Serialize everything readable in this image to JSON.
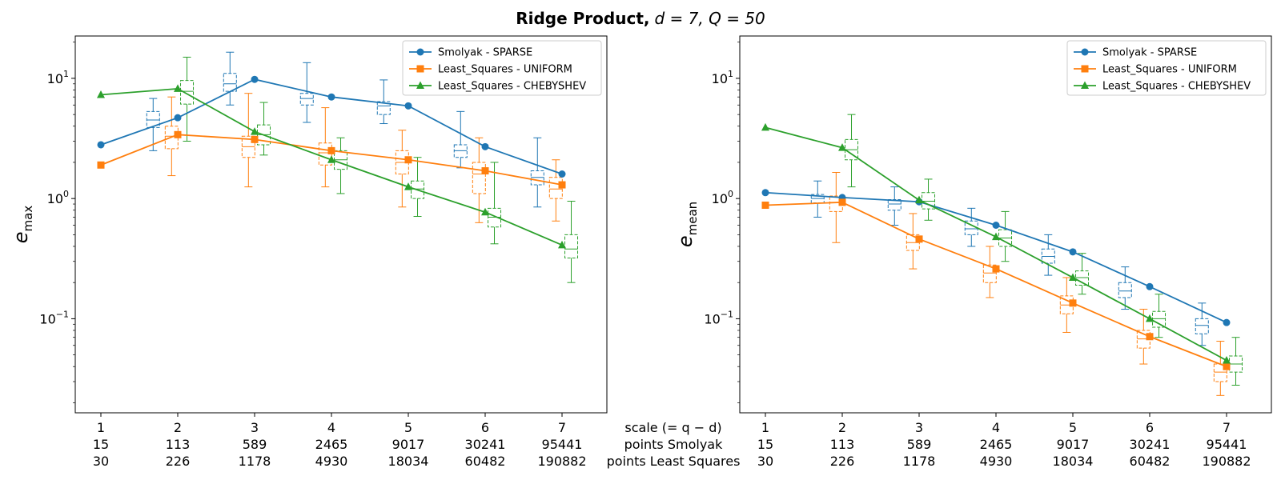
{
  "figure": {
    "title_bold": "Ridge Product,",
    "title_math": "d = 7, Q = 50"
  },
  "table": {
    "header": "scale (= q − d)",
    "row2_label": "points Smolyak",
    "row3_label": "points Least Squares",
    "scales": [
      "1",
      "2",
      "3",
      "4",
      "5",
      "6",
      "7"
    ],
    "points_smolyak": [
      "15",
      "113",
      "589",
      "2465",
      "9017",
      "30241",
      "95441"
    ],
    "points_least_squares": [
      "30",
      "226",
      "1178",
      "4930",
      "18034",
      "60482",
      "190882"
    ]
  },
  "colors": {
    "smolyak": "#1f77b4",
    "uniform": "#ff7f0e",
    "chebyshev": "#2ca02c"
  },
  "chart_data": [
    {
      "type": "line",
      "ylabel": "e_max",
      "yscale": "log",
      "ylim": [
        0.0165,
        22.5
      ],
      "x": [
        1,
        2,
        3,
        4,
        5,
        6,
        7
      ],
      "ytick_labels": [
        "10^-1",
        "10^0",
        "10^1"
      ],
      "legend_position": "top-right",
      "series": [
        {
          "name": "Smolyak - SPARSE",
          "marker": "circle",
          "values": [
            2.8,
            4.7,
            9.8,
            7.0,
            5.9,
            2.7,
            1.6
          ],
          "box": [
            {
              "whisker_low": 2.5,
              "q1": 3.9,
              "median": 4.5,
              "q3": 5.3,
              "whisker_high": 6.8
            },
            {
              "whisker_low": 6.0,
              "q1": 7.8,
              "median": 9.0,
              "q3": 11.0,
              "whisker_high": 16.5
            },
            {
              "whisker_low": 4.3,
              "q1": 6.0,
              "median": 6.8,
              "q3": 7.5,
              "whisker_high": 13.5
            },
            {
              "whisker_low": 4.2,
              "q1": 5.0,
              "median": 5.9,
              "q3": 6.4,
              "whisker_high": 9.7
            },
            {
              "whisker_low": 1.8,
              "q1": 2.2,
              "median": 2.5,
              "q3": 2.8,
              "whisker_high": 5.3
            },
            {
              "whisker_low": 0.85,
              "q1": 1.3,
              "median": 1.5,
              "q3": 1.7,
              "whisker_high": 3.2
            }
          ]
        },
        {
          "name": "Least_Squares - UNIFORM",
          "marker": "square",
          "values": [
            1.9,
            3.4,
            3.1,
            2.5,
            2.1,
            1.7,
            1.3
          ],
          "box": [
            {
              "whisker_low": 1.55,
              "q1": 2.6,
              "median": 3.3,
              "q3": 4.0,
              "whisker_high": 7.0
            },
            {
              "whisker_low": 1.25,
              "q1": 2.2,
              "median": 2.7,
              "q3": 3.3,
              "whisker_high": 7.5
            },
            {
              "whisker_low": 1.25,
              "q1": 1.9,
              "median": 2.4,
              "q3": 2.9,
              "whisker_high": 5.7
            },
            {
              "whisker_low": 0.85,
              "q1": 1.6,
              "median": 2.0,
              "q3": 2.5,
              "whisker_high": 3.7
            },
            {
              "whisker_low": 0.63,
              "q1": 1.1,
              "median": 1.6,
              "q3": 2.0,
              "whisker_high": 3.2
            },
            {
              "whisker_low": 0.65,
              "q1": 1.0,
              "median": 1.2,
              "q3": 1.5,
              "whisker_high": 2.1
            }
          ]
        },
        {
          "name": "Least_Squares - CHEBYSHEV",
          "marker": "triangle",
          "values": [
            7.3,
            8.2,
            3.6,
            2.1,
            1.25,
            0.77,
            0.41
          ],
          "box": [
            {
              "whisker_low": 3.0,
              "q1": 6.1,
              "median": 7.8,
              "q3": 9.6,
              "whisker_high": 15.0
            },
            {
              "whisker_low": 2.3,
              "q1": 2.8,
              "median": 3.4,
              "q3": 4.1,
              "whisker_high": 6.3
            },
            {
              "whisker_low": 1.1,
              "q1": 1.75,
              "median": 2.1,
              "q3": 2.5,
              "whisker_high": 3.2
            },
            {
              "whisker_low": 0.71,
              "q1": 1.0,
              "median": 1.2,
              "q3": 1.4,
              "whisker_high": 2.2
            },
            {
              "whisker_low": 0.42,
              "q1": 0.58,
              "median": 0.7,
              "q3": 0.83,
              "whisker_high": 2.0
            },
            {
              "whisker_low": 0.2,
              "q1": 0.32,
              "median": 0.38,
              "q3": 0.5,
              "whisker_high": 0.95
            }
          ]
        }
      ]
    },
    {
      "type": "line",
      "ylabel": "e_mean",
      "yscale": "log",
      "ylim": [
        0.0165,
        22.5
      ],
      "x": [
        1,
        2,
        3,
        4,
        5,
        6,
        7
      ],
      "ytick_labels": [
        "10^-1",
        "10^0",
        "10^1"
      ],
      "legend_position": "top-right",
      "series": [
        {
          "name": "Smolyak - SPARSE",
          "marker": "circle",
          "values": [
            1.12,
            1.02,
            0.94,
            0.6,
            0.36,
            0.185,
            0.093
          ],
          "box": [
            {
              "whisker_low": 0.7,
              "q1": 0.92,
              "median": 1.0,
              "q3": 1.08,
              "whisker_high": 1.4
            },
            {
              "whisker_low": 0.6,
              "q1": 0.8,
              "median": 0.9,
              "q3": 0.98,
              "whisker_high": 1.25
            },
            {
              "whisker_low": 0.4,
              "q1": 0.5,
              "median": 0.56,
              "q3": 0.65,
              "whisker_high": 0.83
            },
            {
              "whisker_low": 0.23,
              "q1": 0.29,
              "median": 0.33,
              "q3": 0.38,
              "whisker_high": 0.5
            },
            {
              "whisker_low": 0.12,
              "q1": 0.15,
              "median": 0.17,
              "q3": 0.2,
              "whisker_high": 0.27
            },
            {
              "whisker_low": 0.06,
              "q1": 0.075,
              "median": 0.088,
              "q3": 0.1,
              "whisker_high": 0.135
            }
          ]
        },
        {
          "name": "Least_Squares - UNIFORM",
          "marker": "square",
          "values": [
            0.88,
            0.93,
            0.46,
            0.26,
            0.135,
            0.071,
            0.04
          ],
          "box": [
            {
              "whisker_low": 0.43,
              "q1": 0.78,
              "median": 0.93,
              "q3": 1.05,
              "whisker_high": 1.65
            },
            {
              "whisker_low": 0.26,
              "q1": 0.37,
              "median": 0.43,
              "q3": 0.5,
              "whisker_high": 0.75
            },
            {
              "whisker_low": 0.15,
              "q1": 0.2,
              "median": 0.24,
              "q3": 0.28,
              "whisker_high": 0.4
            },
            {
              "whisker_low": 0.077,
              "q1": 0.11,
              "median": 0.13,
              "q3": 0.155,
              "whisker_high": 0.22
            },
            {
              "whisker_low": 0.042,
              "q1": 0.057,
              "median": 0.068,
              "q3": 0.08,
              "whisker_high": 0.12
            },
            {
              "whisker_low": 0.023,
              "q1": 0.03,
              "median": 0.036,
              "q3": 0.042,
              "whisker_high": 0.065
            }
          ]
        },
        {
          "name": "Least_Squares - CHEBYSHEV",
          "marker": "triangle",
          "values": [
            3.9,
            2.65,
            0.97,
            0.48,
            0.22,
            0.1,
            0.045
          ],
          "box": [
            {
              "whisker_low": 1.25,
              "q1": 2.1,
              "median": 2.55,
              "q3": 3.1,
              "whisker_high": 5.0
            },
            {
              "whisker_low": 0.66,
              "q1": 0.82,
              "median": 0.95,
              "q3": 1.12,
              "whisker_high": 1.45
            },
            {
              "whisker_low": 0.3,
              "q1": 0.4,
              "median": 0.47,
              "q3": 0.55,
              "whisker_high": 0.78
            },
            {
              "whisker_low": 0.16,
              "q1": 0.19,
              "median": 0.22,
              "q3": 0.25,
              "whisker_high": 0.35
            },
            {
              "whisker_low": 0.07,
              "q1": 0.085,
              "median": 0.1,
              "q3": 0.115,
              "whisker_high": 0.16
            },
            {
              "whisker_low": 0.028,
              "q1": 0.036,
              "median": 0.042,
              "q3": 0.049,
              "whisker_high": 0.07
            }
          ]
        }
      ]
    }
  ]
}
